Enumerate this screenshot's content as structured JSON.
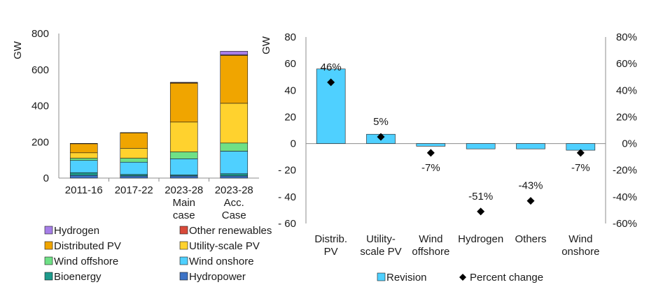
{
  "chart_data": [
    {
      "type": "bar",
      "stacked": true,
      "ylabel": "GW",
      "ylim": [
        0,
        800
      ],
      "yticks": [
        0,
        200,
        400,
        600,
        800
      ],
      "categories": [
        "2011-16",
        "2017-22",
        "2023-28\nMain\ncase",
        "2023-28\nAcc.\nCase"
      ],
      "category_labels": [
        [
          "2011-16"
        ],
        [
          "2017-22"
        ],
        [
          "2023-28",
          "Main",
          "case"
        ],
        [
          "2023-28",
          "Acc.",
          "Case"
        ]
      ],
      "grid": false,
      "series": [
        {
          "name": "Hydropower",
          "color": "#3d73c6",
          "values": [
            15,
            12,
            12,
            12
          ]
        },
        {
          "name": "Bioenergy",
          "color": "#1e9b8c",
          "values": [
            15,
            8,
            5,
            12
          ]
        },
        {
          "name": "Wind onshore",
          "color": "#4fd0ff",
          "values": [
            68,
            68,
            90,
            125
          ]
        },
        {
          "name": "Wind offshore",
          "color": "#6fe086",
          "values": [
            12,
            22,
            38,
            45
          ]
        },
        {
          "name": "Utility-scale PV",
          "color": "#ffd22e",
          "values": [
            30,
            55,
            165,
            220
          ]
        },
        {
          "name": "Distributed PV",
          "color": "#f0a500",
          "values": [
            50,
            85,
            215,
            265
          ]
        },
        {
          "name": "Other renewables",
          "color": "#d94a3a",
          "values": [
            2,
            2,
            3,
            3
          ]
        },
        {
          "name": "Hydrogen",
          "color": "#a67ee8",
          "values": [
            0,
            0,
            2,
            20
          ]
        }
      ],
      "legend": {
        "position": "bottom",
        "rows": [
          [
            "Hydrogen",
            "Other renewables"
          ],
          [
            "Distributed PV",
            "Utility-scale PV"
          ],
          [
            "Wind offshore",
            "Wind onshore"
          ],
          [
            "Bioenergy",
            "Hydropower"
          ]
        ]
      }
    },
    {
      "type": "bar",
      "ylabel": "GW",
      "ylim": [
        -60,
        80
      ],
      "yticks": [
        80,
        60,
        40,
        20,
        0,
        -20,
        -40,
        -60
      ],
      "ytick_labels": [
        "80",
        "60",
        "40",
        "20",
        "0",
        "- 20",
        "- 40",
        "- 60"
      ],
      "y2lim": [
        -0.6,
        0.8
      ],
      "y2ticks": [
        0.8,
        0.6,
        0.4,
        0.2,
        0.0,
        -0.2,
        -0.4,
        -0.6
      ],
      "y2tick_labels": [
        "80%",
        "60%",
        "40%",
        "20%",
        "0%",
        "-20%",
        "-40%",
        "-60%"
      ],
      "categories": [
        "Distrib.\nPV",
        "Utility-\nscale PV",
        "Wind\noffshore",
        "Hydrogen",
        "Others",
        "Wind\nonshore"
      ],
      "category_labels": [
        [
          "Distrib.",
          "PV"
        ],
        [
          "Utility-",
          "scale PV"
        ],
        [
          "Wind",
          "offshore"
        ],
        [
          "Hydrogen"
        ],
        [
          "Others"
        ],
        [
          "Wind",
          "onshore"
        ]
      ],
      "grid": false,
      "series": [
        {
          "name": "Revision",
          "color": "#4fd0ff",
          "values": [
            56,
            7,
            -2,
            -4,
            -4,
            -5
          ]
        },
        {
          "name": "Percent change",
          "color": "#000000",
          "marker": "diamond",
          "axis": "secondary",
          "values": [
            0.46,
            0.05,
            -0.07,
            -0.51,
            -0.43,
            -0.07
          ],
          "labels": [
            "46%",
            "5%",
            "-7%",
            "-51%",
            "-43%",
            "-7%"
          ],
          "label_side": [
            "above",
            "above",
            "below",
            "above",
            "above",
            "below"
          ]
        }
      ],
      "legend": {
        "position": "bottom",
        "entries": [
          "Revision",
          "Percent change"
        ]
      }
    }
  ]
}
